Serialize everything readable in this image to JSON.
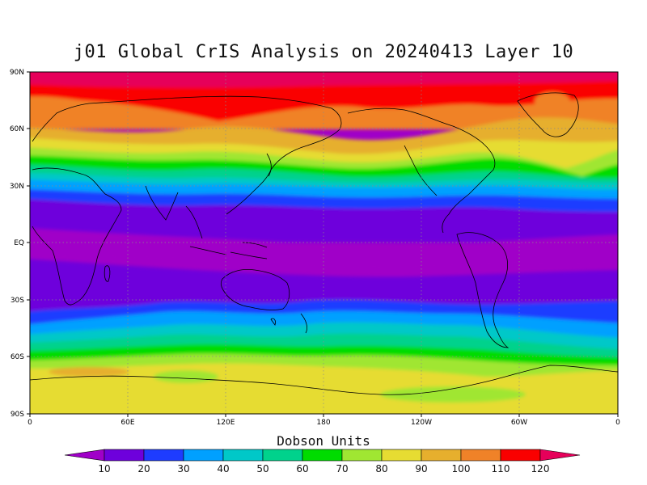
{
  "title": "j01 Global CrIS Analysis on 20240413 Layer 10",
  "map": {
    "lat_ticks": [
      "90N",
      "60N",
      "30N",
      "EQ",
      "30S",
      "60S",
      "90S"
    ],
    "lon_ticks": [
      "0",
      "60E",
      "120E",
      "180",
      "120W",
      "60W",
      "0"
    ],
    "grid": true,
    "coastlines": true
  },
  "colorbar": {
    "title": "Dobson Units",
    "labels": [
      "10",
      "20",
      "30",
      "40",
      "50",
      "60",
      "70",
      "80",
      "90",
      "100",
      "110",
      "120"
    ],
    "colors": [
      "#a000c8",
      "#6e00dc",
      "#1e3cff",
      "#00a0ff",
      "#00c8c8",
      "#00d28c",
      "#00dc00",
      "#a0e632",
      "#e6dc32",
      "#e6af2d",
      "#f08228",
      "#fa0000",
      "#e6005a"
    ]
  }
}
